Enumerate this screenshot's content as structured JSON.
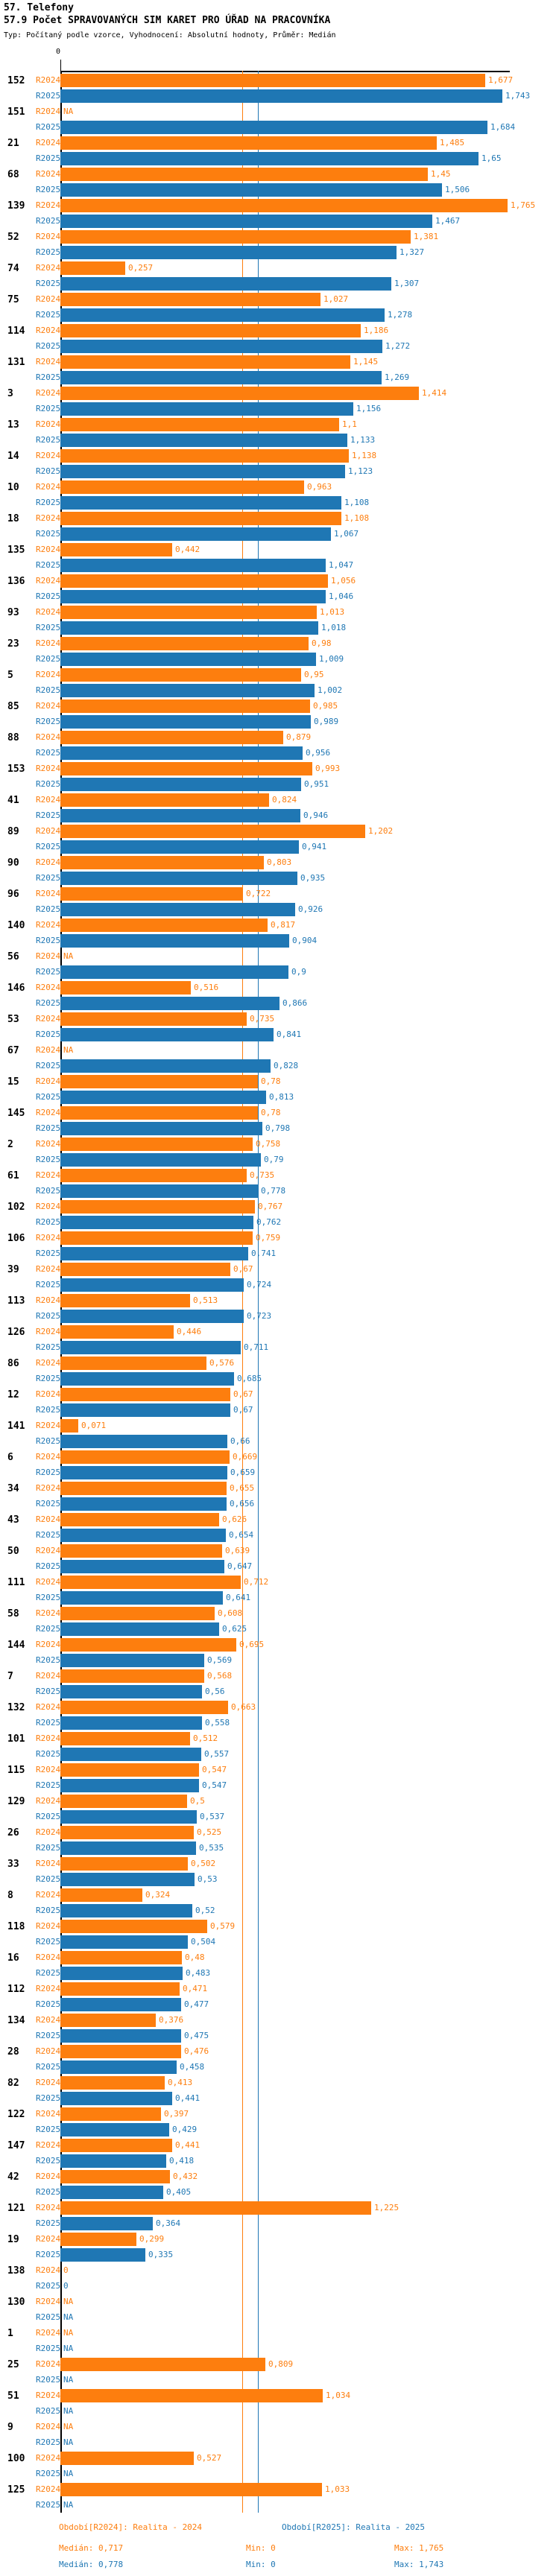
{
  "header": {
    "line1": "57. Telefony",
    "line2": "57.9 Počet SPRAVOVANÝCH SIM KARET PRO ÚŘAD NA PRACOVNÍKA",
    "line3": "Typ: Počítaný podle vzorce, Vyhodnocení: Absolutní hodnoty, Průměr: Medián"
  },
  "chart_data": {
    "type": "bar",
    "orientation": "horizontal",
    "title": "57.9 Počet SPRAVOVANÝCH SIM KARET PRO ÚŘAD NA PRACOVNÍKA",
    "series_names": [
      "R2024",
      "R2025"
    ],
    "colors": {
      "R2024": "#fd7e0e",
      "R2025": "#1f77b4"
    },
    "axis": {
      "tick_label": "0",
      "min": 0,
      "grid": false
    },
    "median_lines": {
      "R2024": 0.717,
      "R2025": 0.778
    },
    "rows": [
      {
        "id": "152",
        "l24": "1,677",
        "l25": "1,743",
        "v24": 1.677,
        "v25": 1.743
      },
      {
        "id": "151",
        "l24": "NA",
        "l25": "1,684",
        "v24": null,
        "v25": 1.684
      },
      {
        "id": "21",
        "l24": "1,485",
        "l25": "1,65",
        "v24": 1.485,
        "v25": 1.65
      },
      {
        "id": "68",
        "l24": "1,45",
        "l25": "1,506",
        "v24": 1.45,
        "v25": 1.506
      },
      {
        "id": "139",
        "l24": "1,765",
        "l25": "1,467",
        "v24": 1.765,
        "v25": 1.467
      },
      {
        "id": "52",
        "l24": "1,381",
        "l25": "1,327",
        "v24": 1.381,
        "v25": 1.327
      },
      {
        "id": "74",
        "l24": "0,257",
        "l25": "1,307",
        "v24": 0.257,
        "v25": 1.307
      },
      {
        "id": "75",
        "l24": "1,027",
        "l25": "1,278",
        "v24": 1.027,
        "v25": 1.278
      },
      {
        "id": "114",
        "l24": "1,186",
        "l25": "1,272",
        "v24": 1.186,
        "v25": 1.272
      },
      {
        "id": "131",
        "l24": "1,145",
        "l25": "1,269",
        "v24": 1.145,
        "v25": 1.269
      },
      {
        "id": "3",
        "l24": "1,414",
        "l25": "1,156",
        "v24": 1.414,
        "v25": 1.156
      },
      {
        "id": "13",
        "l24": "1,1",
        "l25": "1,133",
        "v24": 1.1,
        "v25": 1.133
      },
      {
        "id": "14",
        "l24": "1,138",
        "l25": "1,123",
        "v24": 1.138,
        "v25": 1.123
      },
      {
        "id": "10",
        "l24": "0,963",
        "l25": "1,108",
        "v24": 0.963,
        "v25": 1.108
      },
      {
        "id": "18",
        "l24": "1,108",
        "l25": "1,067",
        "v24": 1.108,
        "v25": 1.067
      },
      {
        "id": "135",
        "l24": "0,442",
        "l25": "1,047",
        "v24": 0.442,
        "v25": 1.047
      },
      {
        "id": "136",
        "l24": "1,056",
        "l25": "1,046",
        "v24": 1.056,
        "v25": 1.046
      },
      {
        "id": "93",
        "l24": "1,013",
        "l25": "1,018",
        "v24": 1.013,
        "v25": 1.018
      },
      {
        "id": "23",
        "l24": "0,98",
        "l25": "1,009",
        "v24": 0.98,
        "v25": 1.009
      },
      {
        "id": "5",
        "l24": "0,95",
        "l25": "1,002",
        "v24": 0.95,
        "v25": 1.002
      },
      {
        "id": "85",
        "l24": "0,985",
        "l25": "0,989",
        "v24": 0.985,
        "v25": 0.989
      },
      {
        "id": "88",
        "l24": "0,879",
        "l25": "0,956",
        "v24": 0.879,
        "v25": 0.956
      },
      {
        "id": "153",
        "l24": "0,993",
        "l25": "0,951",
        "v24": 0.993,
        "v25": 0.951
      },
      {
        "id": "41",
        "l24": "0,824",
        "l25": "0,946",
        "v24": 0.824,
        "v25": 0.946
      },
      {
        "id": "89",
        "l24": "1,202",
        "l25": "0,941",
        "v24": 1.202,
        "v25": 0.941
      },
      {
        "id": "90",
        "l24": "0,803",
        "l25": "0,935",
        "v24": 0.803,
        "v25": 0.935
      },
      {
        "id": "96",
        "l24": "0,722",
        "l25": "0,926",
        "v24": 0.722,
        "v25": 0.926
      },
      {
        "id": "140",
        "l24": "0,817",
        "l25": "0,904",
        "v24": 0.817,
        "v25": 0.904
      },
      {
        "id": "56",
        "l24": "NA",
        "l25": "0,9",
        "v24": null,
        "v25": 0.9
      },
      {
        "id": "146",
        "l24": "0,516",
        "l25": "0,866",
        "v24": 0.516,
        "v25": 0.866
      },
      {
        "id": "53",
        "l24": "0,735",
        "l25": "0,841",
        "v24": 0.735,
        "v25": 0.841
      },
      {
        "id": "67",
        "l24": "NA",
        "l25": "0,828",
        "v24": null,
        "v25": 0.828
      },
      {
        "id": "15",
        "l24": "0,78",
        "l25": "0,813",
        "v24": 0.78,
        "v25": 0.813
      },
      {
        "id": "145",
        "l24": "0,78",
        "l25": "0,798",
        "v24": 0.78,
        "v25": 0.798
      },
      {
        "id": "2",
        "l24": "0,758",
        "l25": "0,79",
        "v24": 0.758,
        "v25": 0.79
      },
      {
        "id": "61",
        "l24": "0,735",
        "l25": "0,778",
        "v24": 0.735,
        "v25": 0.778
      },
      {
        "id": "102",
        "l24": "0,767",
        "l25": "0,762",
        "v24": 0.767,
        "v25": 0.762
      },
      {
        "id": "106",
        "l24": "0,759",
        "l25": "0,741",
        "v24": 0.759,
        "v25": 0.741
      },
      {
        "id": "39",
        "l24": "0,67",
        "l25": "0,724",
        "v24": 0.67,
        "v25": 0.724
      },
      {
        "id": "113",
        "l24": "0,513",
        "l25": "0,723",
        "v24": 0.513,
        "v25": 0.723
      },
      {
        "id": "126",
        "l24": "0,446",
        "l25": "0,711",
        "v24": 0.446,
        "v25": 0.711
      },
      {
        "id": "86",
        "l24": "0,576",
        "l25": "0,685",
        "v24": 0.576,
        "v25": 0.685
      },
      {
        "id": "12",
        "l24": "0,67",
        "l25": "0,67",
        "v24": 0.67,
        "v25": 0.67
      },
      {
        "id": "141",
        "l24": "0,071",
        "l25": "0,66",
        "v24": 0.071,
        "v25": 0.66
      },
      {
        "id": "6",
        "l24": "0,669",
        "l25": "0,659",
        "v24": 0.669,
        "v25": 0.659
      },
      {
        "id": "34",
        "l24": "0,655",
        "l25": "0,656",
        "v24": 0.655,
        "v25": 0.656
      },
      {
        "id": "43",
        "l24": "0,626",
        "l25": "0,654",
        "v24": 0.626,
        "v25": 0.654
      },
      {
        "id": "50",
        "l24": "0,639",
        "l25": "0,647",
        "v24": 0.639,
        "v25": 0.647
      },
      {
        "id": "111",
        "l24": "0,712",
        "l25": "0,641",
        "v24": 0.712,
        "v25": 0.641
      },
      {
        "id": "58",
        "l24": "0,608",
        "l25": "0,625",
        "v24": 0.608,
        "v25": 0.625
      },
      {
        "id": "144",
        "l24": "0,695",
        "l25": "0,569",
        "v24": 0.695,
        "v25": 0.569
      },
      {
        "id": "7",
        "l24": "0,568",
        "l25": "0,56",
        "v24": 0.568,
        "v25": 0.56
      },
      {
        "id": "132",
        "l24": "0,663",
        "l25": "0,558",
        "v24": 0.663,
        "v25": 0.558
      },
      {
        "id": "101",
        "l24": "0,512",
        "l25": "0,557",
        "v24": 0.512,
        "v25": 0.557
      },
      {
        "id": "115",
        "l24": "0,547",
        "l25": "0,547",
        "v24": 0.547,
        "v25": 0.547
      },
      {
        "id": "129",
        "l24": "0,5",
        "l25": "0,537",
        "v24": 0.5,
        "v25": 0.537
      },
      {
        "id": "26",
        "l24": "0,525",
        "l25": "0,535",
        "v24": 0.525,
        "v25": 0.535
      },
      {
        "id": "33",
        "l24": "0,502",
        "l25": "0,53",
        "v24": 0.502,
        "v25": 0.53
      },
      {
        "id": "8",
        "l24": "0,324",
        "l25": "0,52",
        "v24": 0.324,
        "v25": 0.52
      },
      {
        "id": "118",
        "l24": "0,579",
        "l25": "0,504",
        "v24": 0.579,
        "v25": 0.504
      },
      {
        "id": "16",
        "l24": "0,48",
        "l25": "0,483",
        "v24": 0.48,
        "v25": 0.483
      },
      {
        "id": "112",
        "l24": "0,471",
        "l25": "0,477",
        "v24": 0.471,
        "v25": 0.477
      },
      {
        "id": "134",
        "l24": "0,376",
        "l25": "0,475",
        "v24": 0.376,
        "v25": 0.475
      },
      {
        "id": "28",
        "l24": "0,476",
        "l25": "0,458",
        "v24": 0.476,
        "v25": 0.458
      },
      {
        "id": "82",
        "l24": "0,413",
        "l25": "0,441",
        "v24": 0.413,
        "v25": 0.441
      },
      {
        "id": "122",
        "l24": "0,397",
        "l25": "0,429",
        "v24": 0.397,
        "v25": 0.429
      },
      {
        "id": "147",
        "l24": "0,441",
        "l25": "0,418",
        "v24": 0.441,
        "v25": 0.418
      },
      {
        "id": "42",
        "l24": "0,432",
        "l25": "0,405",
        "v24": 0.432,
        "v25": 0.405
      },
      {
        "id": "121",
        "l24": "1,225",
        "l25": "0,364",
        "v24": 1.225,
        "v25": 0.364
      },
      {
        "id": "19",
        "l24": "0,299",
        "l25": "0,335",
        "v24": 0.299,
        "v25": 0.335
      },
      {
        "id": "138",
        "l24": "0",
        "l25": "0",
        "v24": 0,
        "v25": 0
      },
      {
        "id": "130",
        "l24": "NA",
        "l25": "NA",
        "v24": null,
        "v25": null
      },
      {
        "id": "1",
        "l24": "NA",
        "l25": "NA",
        "v24": null,
        "v25": null
      },
      {
        "id": "25",
        "l24": "0,809",
        "l25": "NA",
        "v24": 0.809,
        "v25": null
      },
      {
        "id": "51",
        "l24": "1,034",
        "l25": "NA",
        "v24": 1.034,
        "v25": null
      },
      {
        "id": "9",
        "l24": "NA",
        "l25": "NA",
        "v24": null,
        "v25": null
      },
      {
        "id": "100",
        "l24": "0,527",
        "l25": "NA",
        "v24": 0.527,
        "v25": null
      },
      {
        "id": "125",
        "l24": "1,033",
        "l25": "NA",
        "v24": 1.033,
        "v25": null
      }
    ]
  },
  "footer": {
    "period_2024": "Období[R2024]: Realita - 2024",
    "period_2025": "Období[R2025]: Realita - 2025",
    "median_2024": "Medián: 0,717",
    "min_2024": "Min: 0",
    "max_2024": "Max: 1,765",
    "median_2025": "Medián: 0,778",
    "min_2025": "Min: 0",
    "max_2025": "Max: 1,743"
  }
}
